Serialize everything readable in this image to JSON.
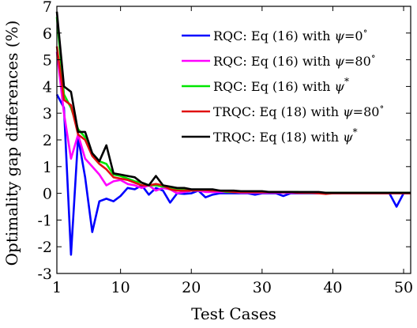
{
  "chart_data": {
    "type": "line",
    "xlabel": "Test Cases",
    "ylabel": "Optimality gap differences (%)",
    "xlim": [
      1,
      51
    ],
    "ylim": [
      -3,
      7
    ],
    "xticks": [
      1,
      10,
      20,
      30,
      40,
      50
    ],
    "yticks": [
      -3,
      -2,
      -1,
      0,
      1,
      2,
      3,
      4,
      5,
      6,
      7
    ],
    "grid": false,
    "legend_position": "top-right",
    "series": [
      {
        "name": "RQC: Eq (16) with ψ=0°",
        "legend": {
          "prefix": "RQC: Eq (16) with ",
          "symbol": "ψ",
          "suffix": "=0",
          "sup": "∘"
        },
        "color": "#0000ff",
        "x": [
          1,
          2,
          3,
          4,
          5,
          6,
          7,
          8,
          9,
          10,
          11,
          12,
          13,
          14,
          15,
          16,
          17,
          18,
          19,
          20,
          21,
          22,
          23,
          24,
          25,
          26,
          27,
          28,
          29,
          30,
          31,
          32,
          33,
          34,
          35,
          36,
          37,
          38,
          39,
          40,
          41,
          42,
          43,
          44,
          45,
          46,
          47,
          48,
          49,
          50,
          51
        ],
        "y": [
          3.7,
          3.2,
          -2.3,
          2.1,
          0.6,
          -1.45,
          -0.3,
          -0.2,
          -0.3,
          -0.1,
          0.2,
          0.15,
          0.3,
          -0.05,
          0.2,
          0.1,
          -0.35,
          0.0,
          -0.02,
          0.0,
          0.1,
          -0.15,
          -0.05,
          0.0,
          0.0,
          0.0,
          0.0,
          0.0,
          -0.05,
          0.0,
          0.0,
          0.0,
          -0.1,
          0.0,
          0.0,
          0.0,
          0.0,
          0.0,
          0.0,
          0.0,
          0.0,
          0.0,
          0.0,
          0.0,
          0.0,
          0.0,
          0.0,
          0.0,
          -0.5,
          0.0,
          0.0
        ]
      },
      {
        "name": "RQC: Eq (16) with ψ=80°",
        "legend": {
          "prefix": "RQC: Eq (16) with ",
          "symbol": "ψ",
          "suffix": "=80",
          "sup": "∘"
        },
        "color": "#ff00ff",
        "x": [
          1,
          2,
          3,
          4,
          5,
          6,
          7,
          8,
          9,
          10,
          11,
          12,
          13,
          14,
          15,
          16,
          17,
          18,
          19,
          20,
          21,
          22,
          23,
          24,
          25,
          26,
          27,
          28,
          29,
          30,
          31,
          32,
          33,
          34,
          35,
          36,
          37,
          38,
          39,
          40,
          41,
          42,
          43,
          44,
          45,
          46,
          47,
          48,
          49,
          50,
          51
        ],
        "y": [
          5.3,
          3.0,
          1.3,
          2.2,
          1.3,
          1.0,
          0.7,
          0.3,
          0.45,
          0.5,
          0.35,
          0.3,
          0.2,
          0.3,
          0.1,
          0.2,
          0.15,
          0.0,
          0.05,
          0.1,
          0.1,
          0.05,
          0.05,
          0.05,
          0.05,
          0.05,
          0.02,
          0.02,
          0.02,
          0.02,
          0.02,
          0.02,
          0.02,
          0.02,
          0.02,
          0.02,
          0.02,
          0.0,
          0.0,
          0.0,
          0.0,
          0.0,
          0.0,
          0.0,
          0.0,
          0.0,
          0.0,
          0.0,
          0.0,
          0.0,
          0.0
        ]
      },
      {
        "name": "RQC: Eq (16) with ψ*",
        "legend": {
          "prefix": "RQC: Eq (16) with ",
          "symbol": "ψ",
          "suffix": "",
          "sup": "*"
        },
        "color": "#00e600",
        "x": [
          1,
          2,
          3,
          4,
          5,
          6,
          7,
          8,
          9,
          10,
          11,
          12,
          13,
          14,
          15,
          16,
          17,
          18,
          19,
          20,
          21,
          22,
          23,
          24,
          25,
          26,
          27,
          28,
          29,
          30,
          31,
          32,
          33,
          34,
          35,
          36,
          37,
          38,
          39,
          40,
          41,
          42,
          43,
          44,
          45,
          46,
          47,
          48,
          49,
          50,
          51
        ],
        "y": [
          6.6,
          3.7,
          3.2,
          2.4,
          2.1,
          1.5,
          1.2,
          1.1,
          0.7,
          0.65,
          0.55,
          0.45,
          0.4,
          0.3,
          0.3,
          0.25,
          0.2,
          0.15,
          0.15,
          0.1,
          0.12,
          0.12,
          0.1,
          0.1,
          0.05,
          0.05,
          0.05,
          0.05,
          0.05,
          0.05,
          0.05,
          0.05,
          0.05,
          0.05,
          0.05,
          0.02,
          0.02,
          0.02,
          0.02,
          0.02,
          0.02,
          0.02,
          0.02,
          0.02,
          0.02,
          0.02,
          0.02,
          0.02,
          0.02,
          0.02,
          0.02
        ]
      },
      {
        "name": "TRQC: Eq (18) with ψ=80°",
        "legend": {
          "prefix": "TRQC: Eq (18) with ",
          "symbol": "ψ",
          "suffix": "=80",
          "sup": "∘"
        },
        "color": "#e01010",
        "x": [
          1,
          2,
          3,
          4,
          5,
          6,
          7,
          8,
          9,
          10,
          11,
          12,
          13,
          14,
          15,
          16,
          17,
          18,
          19,
          20,
          21,
          22,
          23,
          24,
          25,
          26,
          27,
          28,
          29,
          30,
          31,
          32,
          33,
          34,
          35,
          36,
          37,
          38,
          39,
          40,
          41,
          42,
          43,
          44,
          45,
          46,
          47,
          48,
          49,
          50,
          51
        ],
        "y": [
          5.5,
          3.5,
          3.3,
          2.2,
          2.0,
          1.4,
          1.1,
          0.9,
          0.6,
          0.55,
          0.5,
          0.4,
          0.3,
          0.3,
          0.35,
          0.3,
          0.15,
          0.1,
          0.1,
          0.1,
          0.12,
          0.12,
          0.1,
          0.1,
          0.08,
          0.05,
          0.05,
          0.05,
          0.05,
          0.05,
          0.05,
          0.05,
          0.05,
          0.05,
          0.02,
          0.02,
          0.02,
          0.0,
          -0.02,
          0.0,
          0.0,
          0.0,
          0.0,
          0.0,
          0.0,
          0.0,
          0.0,
          0.0,
          0.0,
          0.0,
          0.0
        ]
      },
      {
        "name": "TRQC: Eq (18) with ψ*",
        "legend": {
          "prefix": "TRQC: Eq (18) with ",
          "symbol": "ψ",
          "suffix": "",
          "sup": "*"
        },
        "color": "#000000",
        "x": [
          1,
          2,
          3,
          4,
          5,
          6,
          7,
          8,
          9,
          10,
          11,
          12,
          13,
          14,
          15,
          16,
          17,
          18,
          19,
          20,
          21,
          22,
          23,
          24,
          25,
          26,
          27,
          28,
          29,
          30,
          31,
          32,
          33,
          34,
          35,
          36,
          37,
          38,
          39,
          40,
          41,
          42,
          43,
          44,
          45,
          46,
          47,
          48,
          49,
          50,
          51
        ],
        "y": [
          6.8,
          4.0,
          3.8,
          2.3,
          2.3,
          1.5,
          1.2,
          1.8,
          0.75,
          0.7,
          0.65,
          0.6,
          0.4,
          0.3,
          0.65,
          0.3,
          0.25,
          0.2,
          0.2,
          0.15,
          0.15,
          0.15,
          0.15,
          0.1,
          0.1,
          0.1,
          0.08,
          0.08,
          0.08,
          0.08,
          0.05,
          0.05,
          0.05,
          0.05,
          0.05,
          0.05,
          0.05,
          0.05,
          0.02,
          0.02,
          0.02,
          0.02,
          0.02,
          0.02,
          0.02,
          0.02,
          0.02,
          0.02,
          0.02,
          0.02,
          0.02
        ]
      }
    ]
  }
}
